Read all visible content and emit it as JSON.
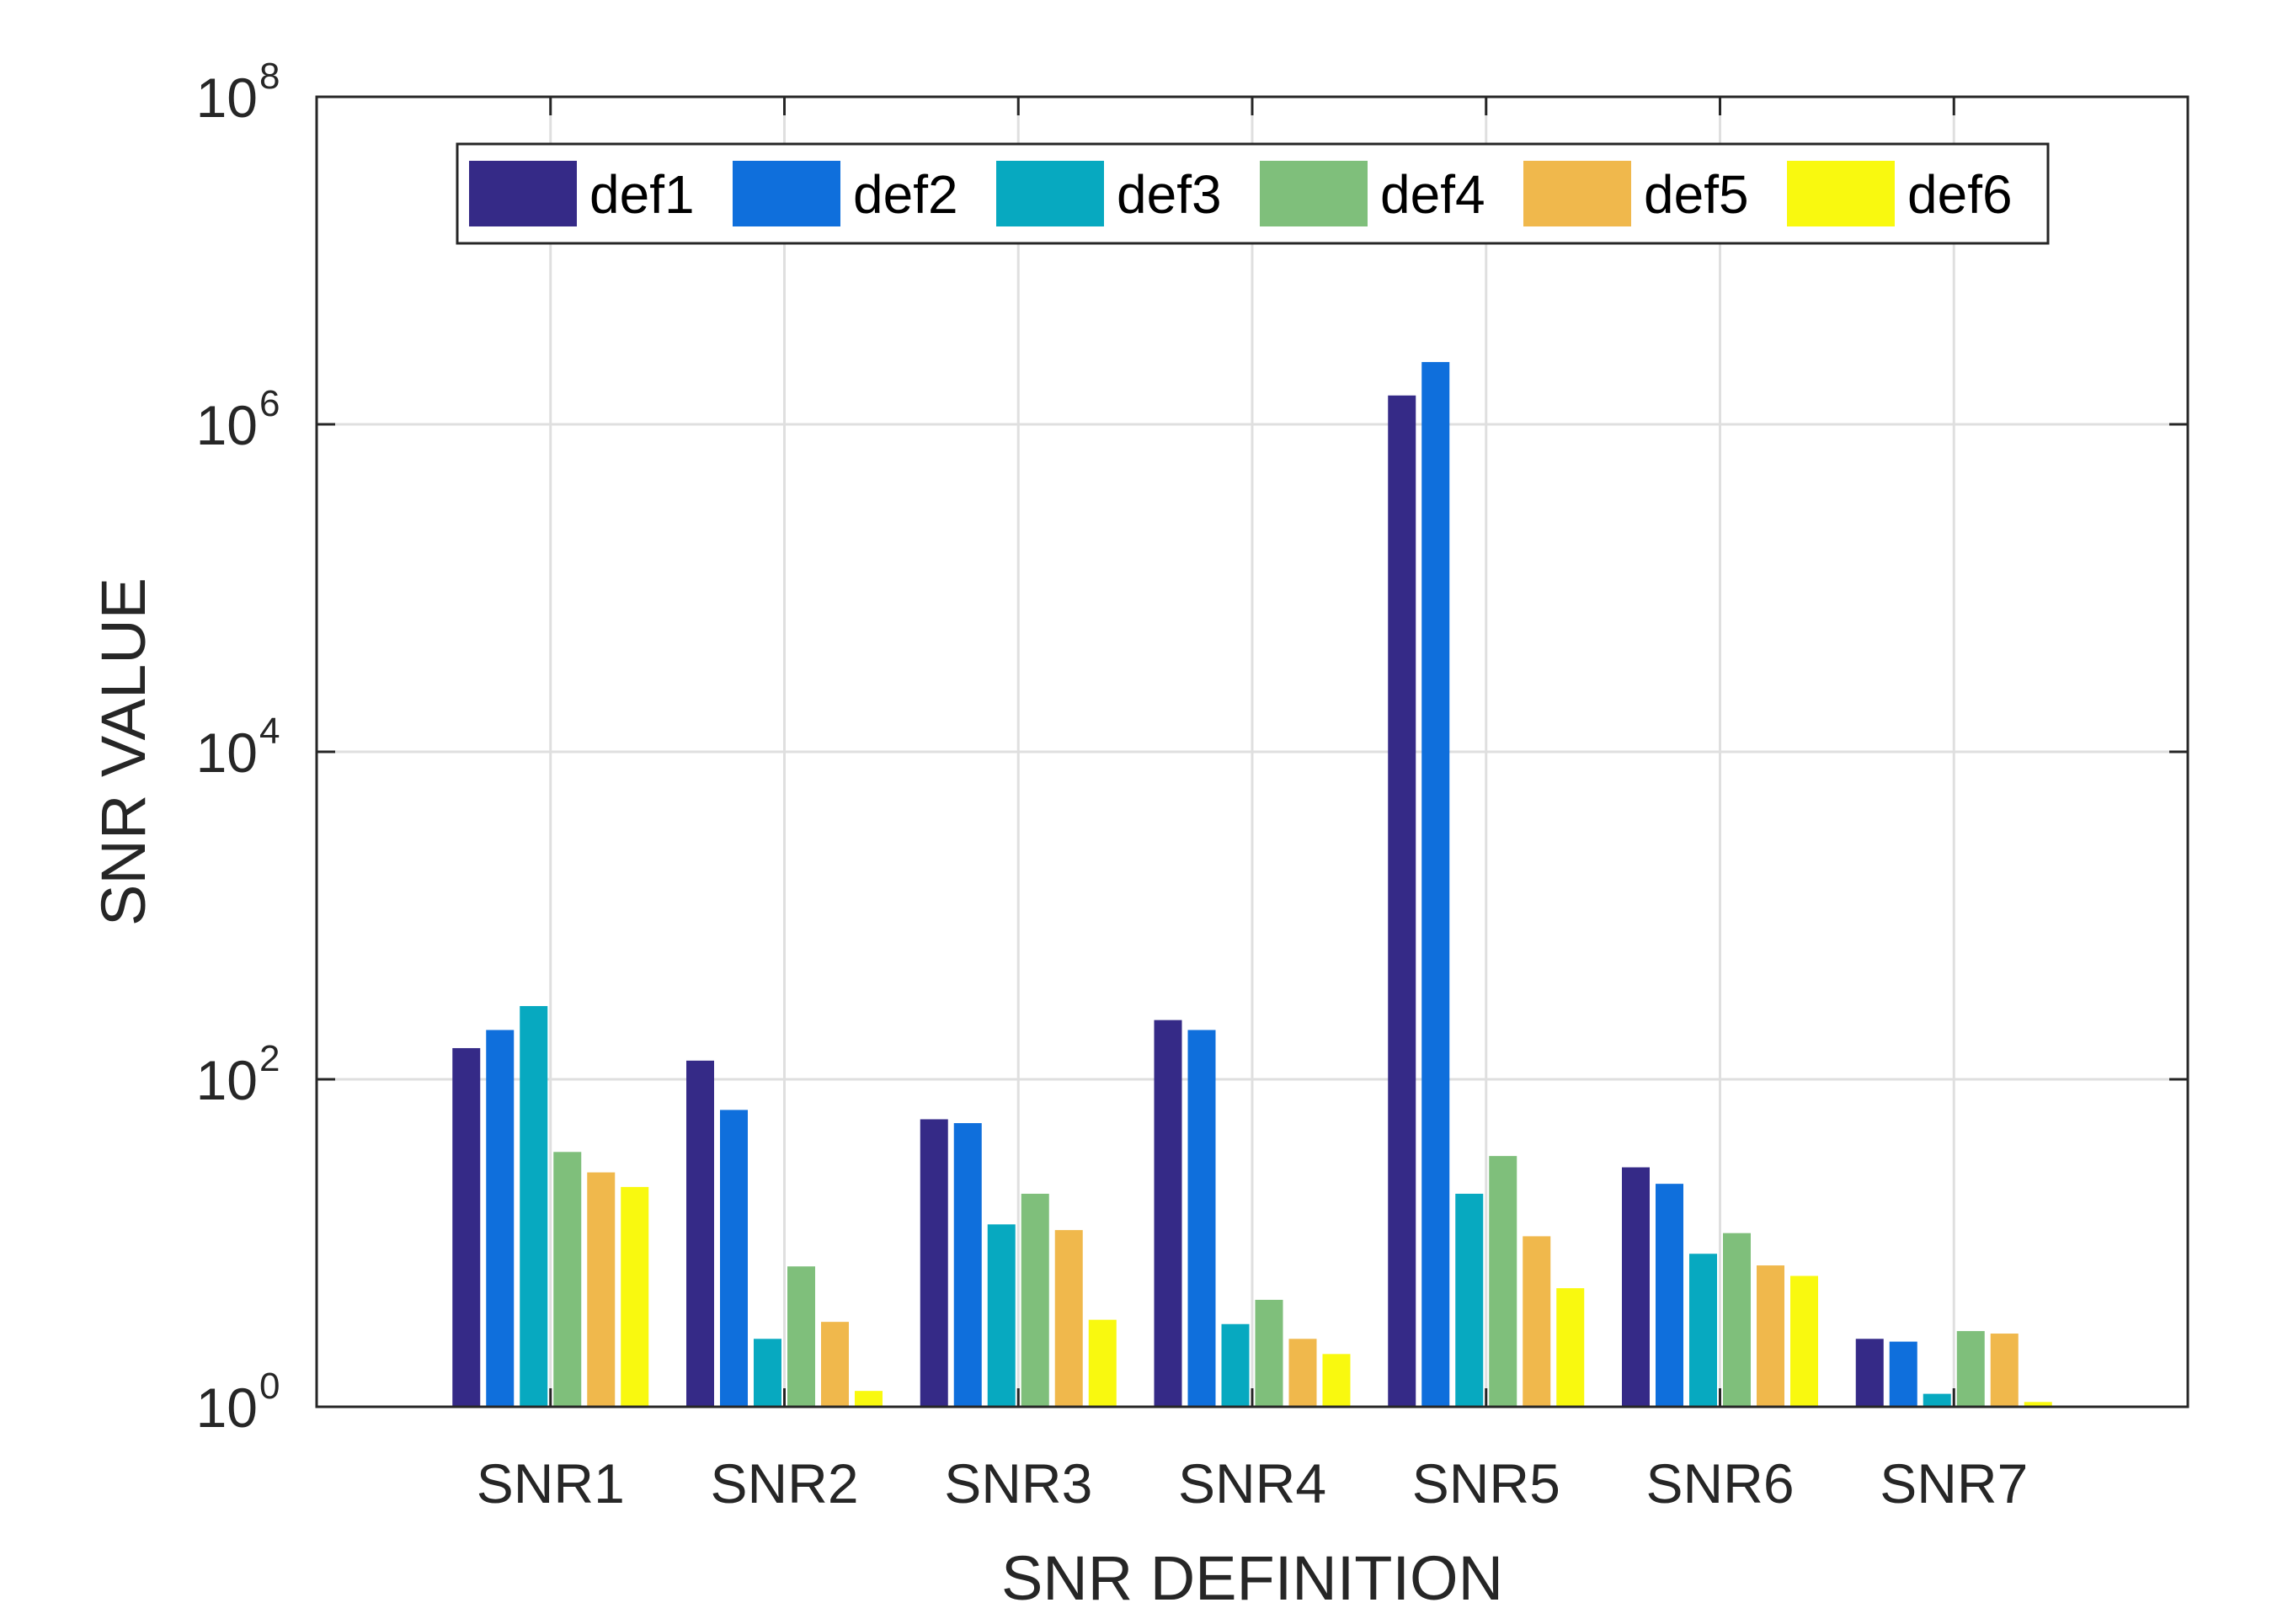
{
  "chart_data": {
    "type": "bar",
    "title": "",
    "xlabel": "SNR DEFINITION",
    "ylabel": "SNR VALUE",
    "yscale": "log",
    "ylim": [
      1,
      100000000
    ],
    "ytick_base": "10",
    "ytick_exponents": [
      "0",
      "2",
      "4",
      "6",
      "8"
    ],
    "grid": true,
    "legend_position": "top",
    "categories": [
      "SNR1",
      "SNR2",
      "SNR3",
      "SNR4",
      "SNR5",
      "SNR6",
      "SNR7"
    ],
    "series": [
      {
        "name": "def1",
        "color": "#352a87",
        "values": [
          155,
          130,
          57,
          230,
          1500000,
          29,
          2.6
        ]
      },
      {
        "name": "def2",
        "color": "#0f6fdc",
        "values": [
          200,
          65,
          54,
          200,
          2400000,
          23,
          2.5
        ]
      },
      {
        "name": "def3",
        "color": "#07a9c0",
        "values": [
          280,
          2.6,
          13,
          3.2,
          20,
          8.6,
          1.2
        ]
      },
      {
        "name": "def4",
        "color": "#7fbf7b",
        "values": [
          36,
          7.2,
          20,
          4.5,
          34,
          11.5,
          2.9
        ]
      },
      {
        "name": "def5",
        "color": "#f0b84c",
        "values": [
          27,
          3.3,
          12,
          2.6,
          11,
          7.3,
          2.8
        ]
      },
      {
        "name": "def6",
        "color": "#f9f90f",
        "values": [
          22,
          1.25,
          3.4,
          2.1,
          5.3,
          6.3,
          1.07
        ]
      }
    ]
  }
}
